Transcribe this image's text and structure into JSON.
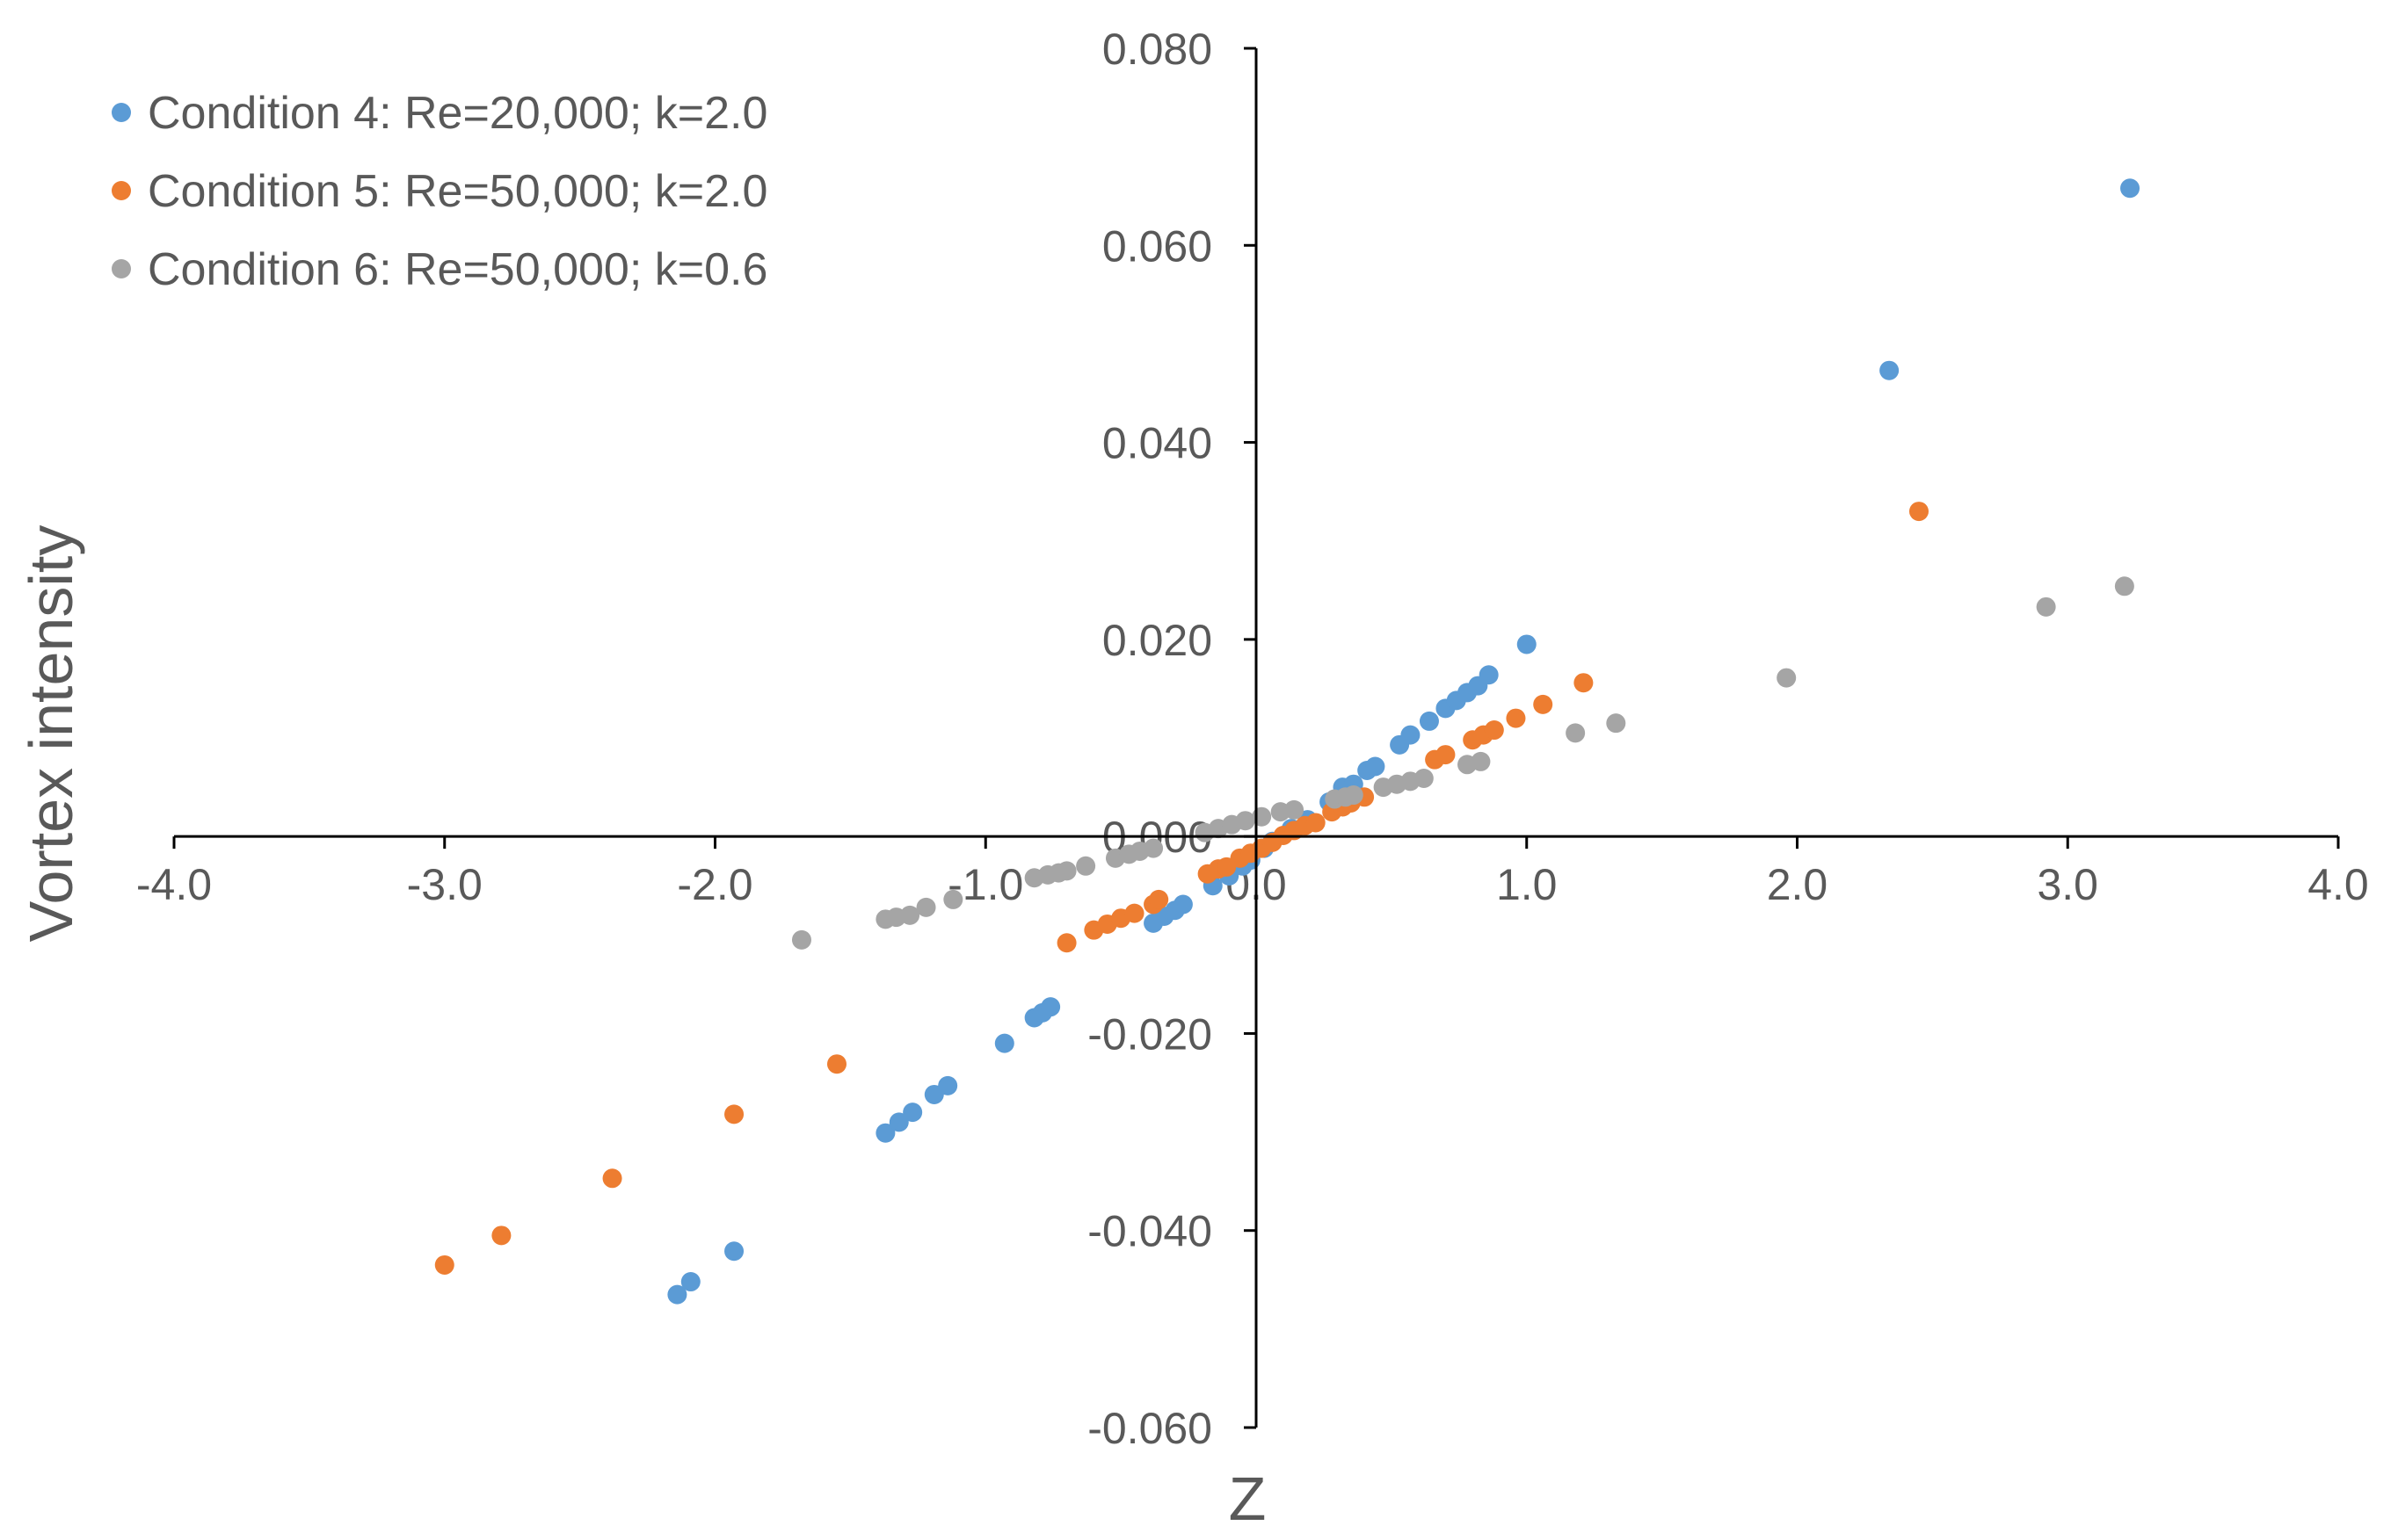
{
  "chart_data": {
    "type": "scatter",
    "title": "",
    "xlabel": "Z",
    "ylabel": "Vortex intensity",
    "xlim": [
      -4.0,
      4.0
    ],
    "ylim": [
      -0.06,
      0.08
    ],
    "grid": false,
    "legend_position": "top-left",
    "x_ticks": [
      -4.0,
      -3.0,
      -2.0,
      -1.0,
      0.0,
      1.0,
      2.0,
      3.0,
      4.0
    ],
    "x_tick_labels": [
      "-4.0",
      "-3.0",
      "-2.0",
      "-1.0",
      "0.0",
      "1.0",
      "2.0",
      "3.0",
      "4.0"
    ],
    "y_ticks": [
      0.08,
      0.06,
      0.04,
      0.02,
      0.0,
      -0.02,
      -0.04,
      -0.06
    ],
    "y_tick_labels": [
      "0.080",
      "0.060",
      "0.040",
      "0.020",
      "0.000",
      "-0.020",
      "-0.040",
      "-0.060"
    ],
    "series": [
      {
        "name": "Condition 4: Re=20,000; k=2.0",
        "color": "#5B9BD5",
        "points": [
          [
            -2.14,
            -0.0465
          ],
          [
            -2.09,
            -0.0452
          ],
          [
            -1.93,
            -0.0421
          ],
          [
            -1.37,
            -0.0301
          ],
          [
            -1.32,
            -0.029
          ],
          [
            -1.27,
            -0.028
          ],
          [
            -1.19,
            -0.0262
          ],
          [
            -1.14,
            -0.0253
          ],
          [
            -0.93,
            -0.021
          ],
          [
            -0.82,
            -0.0184
          ],
          [
            -0.79,
            -0.0179
          ],
          [
            -0.76,
            -0.0173
          ],
          [
            -0.38,
            -0.0088
          ],
          [
            -0.34,
            -0.0081
          ],
          [
            -0.3,
            -0.0075
          ],
          [
            -0.27,
            -0.0069
          ],
          [
            -0.16,
            -0.005
          ],
          [
            -0.1,
            -0.004
          ],
          [
            -0.05,
            -0.003
          ],
          [
            -0.02,
            -0.0024
          ],
          [
            0.03,
            -0.0012
          ],
          [
            0.06,
            -0.0005
          ],
          [
            0.13,
            0.0008
          ],
          [
            0.19,
            0.0017
          ],
          [
            0.27,
            0.0035
          ],
          [
            0.32,
            0.005
          ],
          [
            0.36,
            0.0053
          ],
          [
            0.41,
            0.0067
          ],
          [
            0.44,
            0.0071
          ],
          [
            0.53,
            0.0093
          ],
          [
            0.57,
            0.0103
          ],
          [
            0.64,
            0.0117
          ],
          [
            0.7,
            0.013
          ],
          [
            0.74,
            0.0138
          ],
          [
            0.78,
            0.0146
          ],
          [
            0.82,
            0.0153
          ],
          [
            0.86,
            0.0164
          ],
          [
            1.0,
            0.0195
          ],
          [
            2.34,
            0.0473
          ],
          [
            3.23,
            0.0658
          ]
        ]
      },
      {
        "name": "Condition 5: Re=50,000; k=2.0",
        "color": "#ED7D31",
        "points": [
          [
            -3.0,
            -0.0435
          ],
          [
            -2.79,
            -0.0405
          ],
          [
            -2.38,
            -0.0347
          ],
          [
            -1.93,
            -0.0282
          ],
          [
            -1.55,
            -0.0231
          ],
          [
            -0.7,
            -0.0108
          ],
          [
            -0.6,
            -0.0095
          ],
          [
            -0.55,
            -0.0089
          ],
          [
            -0.5,
            -0.0083
          ],
          [
            -0.45,
            -0.0078
          ],
          [
            -0.38,
            -0.0069
          ],
          [
            -0.36,
            -0.0064
          ],
          [
            -0.18,
            -0.0038
          ],
          [
            -0.14,
            -0.0033
          ],
          [
            -0.11,
            -0.0031
          ],
          [
            -0.06,
            -0.0022
          ],
          [
            -0.02,
            -0.0017
          ],
          [
            0.02,
            -0.0012
          ],
          [
            0.06,
            -0.0006
          ],
          [
            0.1,
            0.0001
          ],
          [
            0.14,
            0.0006
          ],
          [
            0.18,
            0.0011
          ],
          [
            0.22,
            0.0014
          ],
          [
            0.28,
            0.0025
          ],
          [
            0.32,
            0.003
          ],
          [
            0.35,
            0.0034
          ],
          [
            0.4,
            0.004
          ],
          [
            0.66,
            0.0078
          ],
          [
            0.7,
            0.0083
          ],
          [
            0.8,
            0.0098
          ],
          [
            0.84,
            0.0103
          ],
          [
            0.88,
            0.0108
          ],
          [
            0.96,
            0.012
          ],
          [
            1.06,
            0.0134
          ],
          [
            1.21,
            0.0156
          ],
          [
            2.45,
            0.033
          ]
        ]
      },
      {
        "name": "Condition 6: Re=50,000; k=0.6",
        "color": "#A5A5A5",
        "points": [
          [
            -1.68,
            -0.0105
          ],
          [
            -1.37,
            -0.0084
          ],
          [
            -1.33,
            -0.0082
          ],
          [
            -1.28,
            -0.008
          ],
          [
            -1.22,
            -0.0072
          ],
          [
            -1.12,
            -0.0064
          ],
          [
            -0.82,
            -0.0042
          ],
          [
            -0.77,
            -0.0039
          ],
          [
            -0.73,
            -0.0037
          ],
          [
            -0.7,
            -0.0035
          ],
          [
            -0.63,
            -0.003
          ],
          [
            -0.52,
            -0.0022
          ],
          [
            -0.47,
            -0.0018
          ],
          [
            -0.43,
            -0.0015
          ],
          [
            -0.38,
            -0.0012
          ],
          [
            -0.19,
            0.0004
          ],
          [
            -0.14,
            0.0008
          ],
          [
            -0.09,
            0.0012
          ],
          [
            -0.04,
            0.0016
          ],
          [
            0.02,
            0.002
          ],
          [
            0.09,
            0.0025
          ],
          [
            0.14,
            0.0027
          ],
          [
            0.29,
            0.0038
          ],
          [
            0.33,
            0.004
          ],
          [
            0.36,
            0.0042
          ],
          [
            0.47,
            0.005
          ],
          [
            0.52,
            0.0053
          ],
          [
            0.57,
            0.0056
          ],
          [
            0.62,
            0.0059
          ],
          [
            0.78,
            0.0073
          ],
          [
            0.83,
            0.0076
          ],
          [
            1.18,
            0.0105
          ],
          [
            1.33,
            0.0115
          ],
          [
            1.96,
            0.0161
          ],
          [
            2.92,
            0.0233
          ],
          [
            3.21,
            0.0254
          ]
        ]
      }
    ]
  }
}
